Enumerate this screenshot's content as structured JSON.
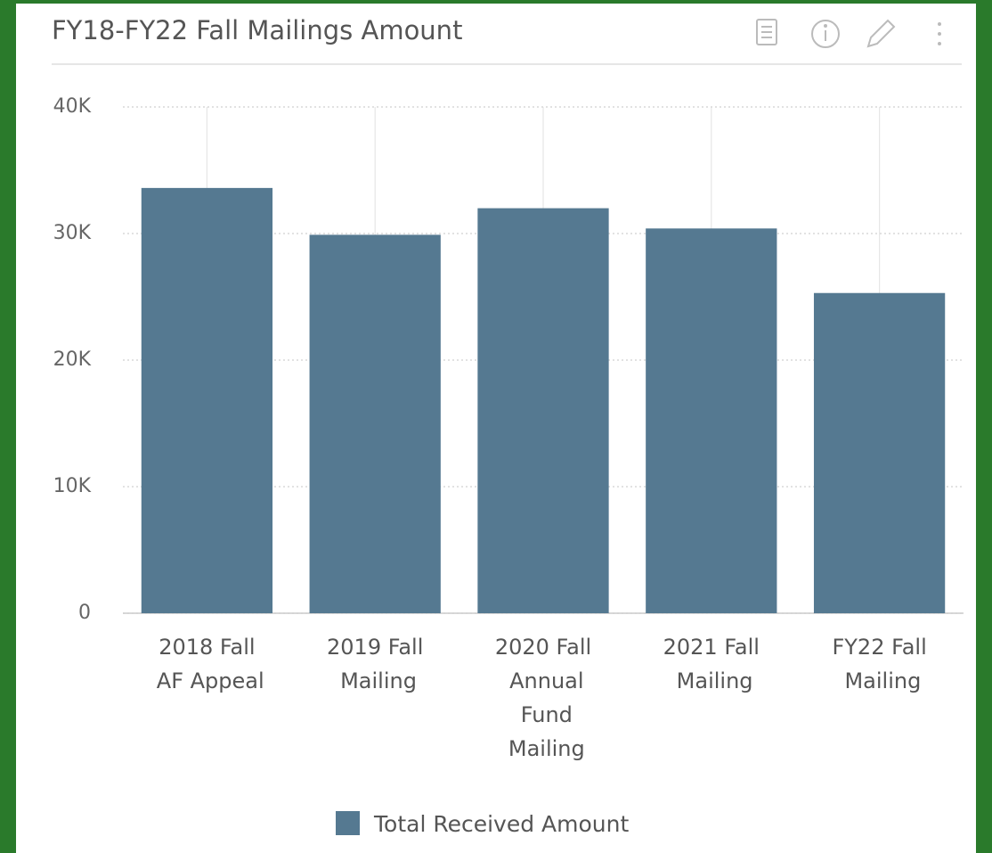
{
  "chart_data": {
    "type": "bar",
    "title": "FY18-FY22 Fall Mailings Amount",
    "categories": [
      "2018 Fall AF Appeal",
      "2019 Fall Mailing",
      "2020 Fall Annual Fund Mailing",
      "2021 Fall Mailing",
      "FY22 Fall Mailing"
    ],
    "series": [
      {
        "name": "Total Received Amount",
        "color": "#557991",
        "values": [
          33600,
          29900,
          32000,
          30400,
          25300
        ]
      }
    ],
    "ylim": [
      0,
      40000
    ],
    "yticks": [
      0,
      {
        "value": 10000,
        "label": "10K"
      },
      {
        "value": 20000,
        "label": "20K"
      },
      {
        "value": 30000,
        "label": "30K"
      },
      {
        "value": 40000,
        "label": "40K"
      }
    ],
    "grid": true,
    "legend": "bottom"
  }
}
